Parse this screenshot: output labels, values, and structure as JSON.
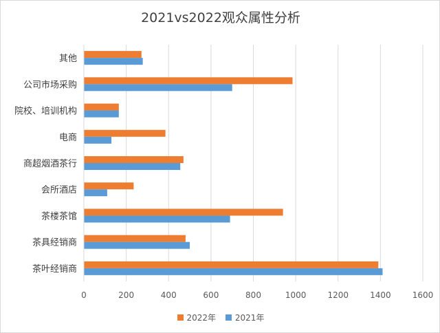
{
  "colors": {
    "series_2022": "#ED7D31",
    "series_2021": "#5B9BD5",
    "grid": "#d9d9d9",
    "text": "#404040"
  },
  "chart_data": {
    "type": "bar",
    "orientation": "horizontal",
    "title": "2021vs2022观众属性分析",
    "categories": [
      "茶叶经销商",
      "茶具经销商",
      "茶楼茶馆",
      "会所酒店",
      "商超烟酒茶行",
      "电商",
      "院校、培训机构",
      "公司市场采购",
      "其他"
    ],
    "series": [
      {
        "name": "2022年",
        "values": [
          1390,
          480,
          940,
          235,
          470,
          385,
          165,
          985,
          272
        ]
      },
      {
        "name": "2021年",
        "values": [
          1410,
          500,
          690,
          110,
          455,
          130,
          165,
          700,
          278
        ]
      }
    ],
    "xlim": [
      0,
      1600
    ],
    "xticks": [
      0,
      200,
      400,
      600,
      800,
      1000,
      1200,
      1400,
      1600
    ],
    "grid": "vertical",
    "legend_position": "bottom"
  }
}
